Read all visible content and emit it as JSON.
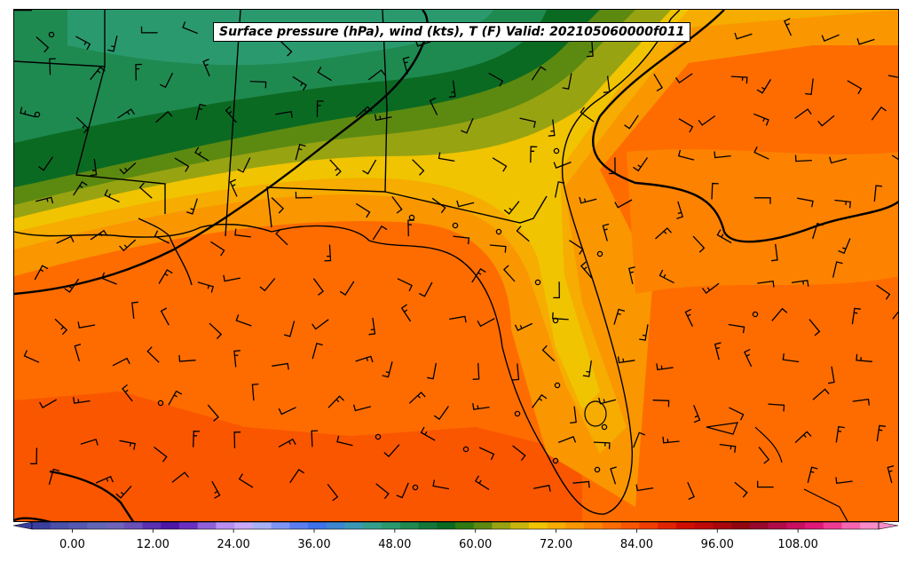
{
  "title": "Surface pressure (hPa), wind (kts), T (F) Valid: 202105060000f011",
  "colorbar": {
    "min": -6,
    "max": 120,
    "step": 3,
    "tick_labels": [
      "0.00",
      "12.00",
      "24.00",
      "36.00",
      "48.00",
      "60.00",
      "72.00",
      "84.00",
      "96.00",
      "108.00"
    ],
    "tick_values": [
      0,
      12,
      24,
      36,
      48,
      60,
      72,
      84,
      96,
      108
    ],
    "colors": [
      "#3a3f9e",
      "#4a4fa8",
      "#5558b0",
      "#6264b5",
      "#6e63b8",
      "#6a4fb8",
      "#5a2fb0",
      "#4d16a8",
      "#6a2fc0",
      "#9060d8",
      "#b88ff0",
      "#c8a8f8",
      "#a8b0f8",
      "#7f95f5",
      "#5a7df0",
      "#3f72e8",
      "#3c86d0",
      "#3b97b5",
      "#349e8c",
      "#2a9a6e",
      "#1f8a50",
      "#14773a",
      "#0b6a22",
      "#2f7a12",
      "#5c8a10",
      "#98a312",
      "#c9b50c",
      "#f0c400",
      "#f6ac00",
      "#fa9600",
      "#fd8200",
      "#fe6c00",
      "#fa5600",
      "#f03e00",
      "#e02400",
      "#d00e00",
      "#bf0a0a",
      "#a8080c",
      "#92070e",
      "#98082a",
      "#b00c48",
      "#c91060",
      "#e01878",
      "#ef3a94",
      "#f564b0",
      "#f98cc8"
    ]
  },
  "contours_hpa": "isobars (black)",
  "wind_units": "kts",
  "temperature_units": "F"
}
